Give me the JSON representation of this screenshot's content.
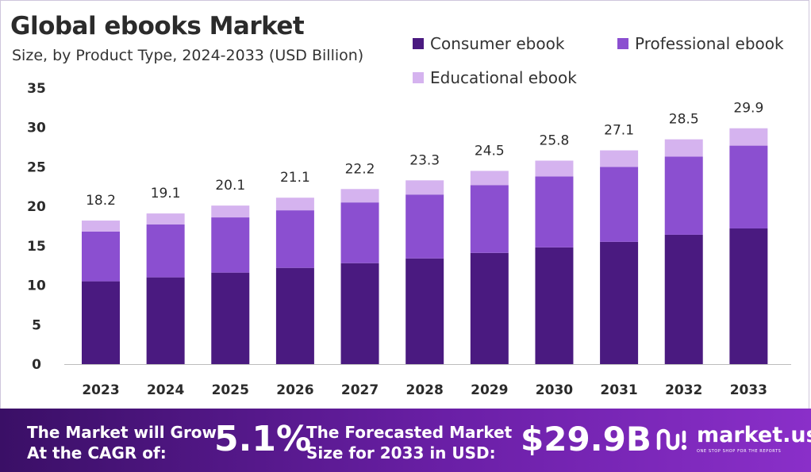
{
  "header": {
    "title": "Global ebooks Market",
    "subtitle": "Size, by Product Type, 2024-2033 (USD Billion)"
  },
  "legend": [
    {
      "label": "Consumer ebook",
      "color": "#4a1a80"
    },
    {
      "label": "Professional ebook",
      "color": "#8b4fd0"
    },
    {
      "label": "Educational ebook",
      "color": "#d5b3ef"
    }
  ],
  "chart_data": {
    "type": "bar",
    "stacked": true,
    "categories": [
      "2023",
      "2024",
      "2025",
      "2026",
      "2027",
      "2028",
      "2029",
      "2030",
      "2031",
      "2032",
      "2033"
    ],
    "series": [
      {
        "name": "Consumer ebook",
        "values": [
          10.5,
          11.0,
          11.6,
          12.2,
          12.8,
          13.4,
          14.1,
          14.8,
          15.5,
          16.4,
          17.2
        ]
      },
      {
        "name": "Professional ebook",
        "values": [
          6.3,
          6.7,
          7.0,
          7.3,
          7.7,
          8.1,
          8.6,
          9.0,
          9.5,
          9.9,
          10.5
        ]
      },
      {
        "name": "Educational ebook",
        "values": [
          1.4,
          1.4,
          1.5,
          1.6,
          1.7,
          1.8,
          1.8,
          2.0,
          2.1,
          2.2,
          2.2
        ]
      }
    ],
    "totals": [
      "18.2",
      "19.1",
      "20.1",
      "21.1",
      "22.2",
      "23.3",
      "24.5",
      "25.8",
      "27.1",
      "28.5",
      "29.9"
    ],
    "ylim": [
      0,
      35
    ],
    "yticks": [
      0,
      5,
      10,
      15,
      20,
      25,
      30,
      35
    ],
    "grid": false,
    "legend_position": "top-right"
  },
  "footer": {
    "cagr_text_line1": "The Market will Grow",
    "cagr_text_line2": "At the CAGR of:",
    "cagr_value": "5.1%",
    "forecast_text_line1": "The Forecasted Market",
    "forecast_text_line2": "Size for 2033 in USD:",
    "forecast_value": "$29.9B",
    "brand_name": "market.us",
    "brand_tagline": "ONE STOP SHOP FOR THE REPORTS",
    "brand_logo_icon": "market-us-logo-icon"
  }
}
